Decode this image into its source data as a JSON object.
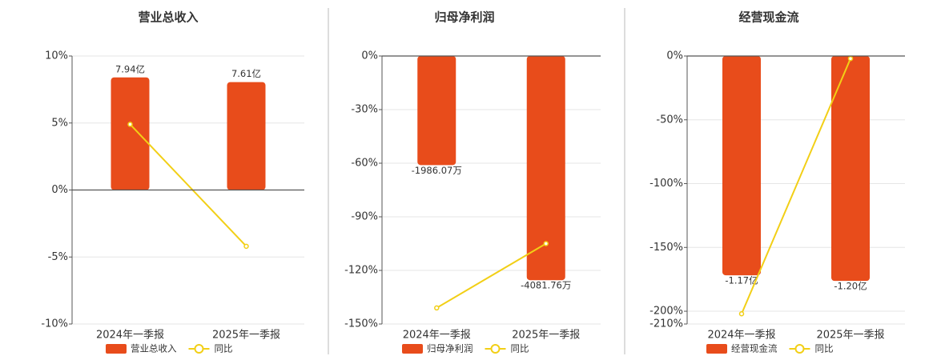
{
  "chart_data": [
    {
      "type": "bar",
      "title": "营业总收入",
      "categories": [
        "2024年一季报",
        "2025年一季报"
      ],
      "series": [
        {
          "name": "营业总收入",
          "color": "#e84c1b",
          "axis": "y2",
          "values": [
            7.94,
            7.61
          ],
          "value_labels": [
            "7.94亿",
            "7.61亿"
          ]
        },
        {
          "name": "同比",
          "color": "#f2cf16",
          "type": "line",
          "values": [
            4.9,
            -4.2
          ]
        }
      ],
      "ylim": [
        -10,
        10
      ],
      "yticks": [
        {
          "value": -10,
          "label": "-10%"
        },
        {
          "value": -5,
          "label": "-5%"
        },
        {
          "value": 0,
          "label": "0%"
        },
        {
          "value": 5,
          "label": "5%"
        },
        {
          "value": 10,
          "label": "10%"
        }
      ],
      "y2lim": [
        -9.45,
        9.45
      ],
      "grid": true
    },
    {
      "type": "bar",
      "title": "归母净利润",
      "categories": [
        "2024年一季报",
        "2025年一季报"
      ],
      "series": [
        {
          "name": "归母净利润",
          "color": "#e84c1b",
          "axis": "y2",
          "values": [
            -1986.07,
            -4081.76
          ],
          "value_labels": [
            "-1986.07万",
            "-4081.76万"
          ]
        },
        {
          "name": "同比",
          "color": "#f2cf16",
          "type": "line",
          "values": [
            -141,
            -105
          ]
        }
      ],
      "ylim": [
        -150,
        0
      ],
      "yticks": [
        {
          "value": -150,
          "label": "-150%"
        },
        {
          "value": -120,
          "label": "-120%"
        },
        {
          "value": -90,
          "label": "-90%"
        },
        {
          "value": -60,
          "label": "-60%"
        },
        {
          "value": -30,
          "label": "-30%"
        },
        {
          "value": 0,
          "label": "0%"
        }
      ],
      "y2lim": [
        -4880,
        0
      ],
      "grid": true
    },
    {
      "type": "bar",
      "title": "经营现金流",
      "categories": [
        "2024年一季报",
        "2025年一季报"
      ],
      "series": [
        {
          "name": "经营现金流",
          "color": "#e84c1b",
          "axis": "y2",
          "values": [
            -1.17,
            -1.2
          ],
          "value_labels": [
            "-1.17亿",
            "-1.20亿"
          ]
        },
        {
          "name": "同比",
          "color": "#f2cf16",
          "type": "line",
          "values": [
            -202,
            -2
          ]
        }
      ],
      "ylim": [
        -210,
        0
      ],
      "yticks": [
        {
          "value": -210,
          "label": "-210%"
        },
        {
          "value": -200,
          "label": "-200%"
        },
        {
          "value": -150,
          "label": "-150%"
        },
        {
          "value": -100,
          "label": "-100%"
        },
        {
          "value": -50,
          "label": "-50%"
        },
        {
          "value": 0,
          "label": "0%"
        }
      ],
      "y2lim": [
        -1.43,
        0
      ],
      "grid": true
    }
  ]
}
